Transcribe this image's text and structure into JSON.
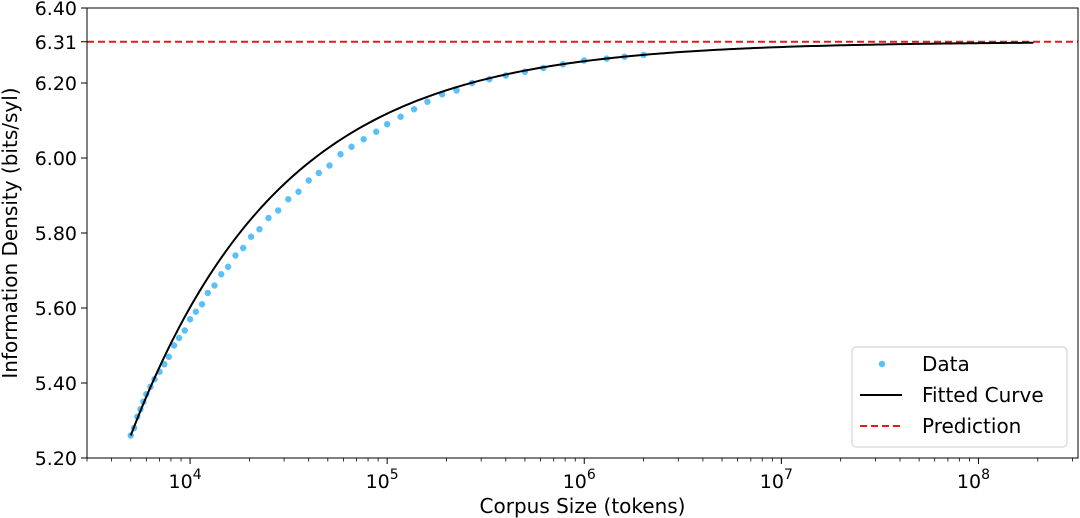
{
  "chart_data": {
    "type": "scatter",
    "title": "",
    "xlabel": "Corpus Size (tokens)",
    "ylabel": "Information Density (bits/syl)",
    "xscale": "log",
    "xlim": [
      3000,
      320000000
    ],
    "ylim": [
      5.2,
      6.4
    ],
    "yticks": [
      5.2,
      5.4,
      5.6,
      5.8,
      6.0,
      6.2,
      6.31,
      6.4
    ],
    "ytick_labels": [
      "5.20",
      "5.40",
      "5.60",
      "5.80",
      "6.00",
      "6.20",
      "6.31",
      "6.40"
    ],
    "xticks": [
      10000,
      100000,
      1000000,
      10000000,
      100000000
    ],
    "xtick_labels": [
      {
        "base": "10",
        "exp": "4"
      },
      {
        "base": "10",
        "exp": "5"
      },
      {
        "base": "10",
        "exp": "6"
      },
      {
        "base": "10",
        "exp": "7"
      },
      {
        "base": "10",
        "exp": "8"
      }
    ],
    "grid": false,
    "legend_position": "lower-right",
    "series": [
      {
        "name": "Data",
        "kind": "scatter",
        "color": "#5bc0f8",
        "points": [
          [
            5000,
            5.26
          ],
          [
            5200,
            5.28
          ],
          [
            5400,
            5.31
          ],
          [
            5600,
            5.33
          ],
          [
            5800,
            5.35
          ],
          [
            6000,
            5.37
          ],
          [
            6300,
            5.39
          ],
          [
            6600,
            5.41
          ],
          [
            7000,
            5.43
          ],
          [
            7400,
            5.45
          ],
          [
            7800,
            5.47
          ],
          [
            8300,
            5.5
          ],
          [
            8800,
            5.52
          ],
          [
            9400,
            5.54
          ],
          [
            10000,
            5.57
          ],
          [
            10700,
            5.59
          ],
          [
            11500,
            5.61
          ],
          [
            12300,
            5.64
          ],
          [
            13300,
            5.66
          ],
          [
            14400,
            5.69
          ],
          [
            15600,
            5.71
          ],
          [
            17000,
            5.74
          ],
          [
            18600,
            5.76
          ],
          [
            20400,
            5.79
          ],
          [
            22500,
            5.81
          ],
          [
            25000,
            5.84
          ],
          [
            28000,
            5.86
          ],
          [
            31500,
            5.89
          ],
          [
            35500,
            5.91
          ],
          [
            40000,
            5.94
          ],
          [
            45000,
            5.96
          ],
          [
            51000,
            5.98
          ],
          [
            58000,
            6.01
          ],
          [
            66000,
            6.03
          ],
          [
            76000,
            6.05
          ],
          [
            88000,
            6.07
          ],
          [
            100000,
            6.09
          ],
          [
            117000,
            6.11
          ],
          [
            137000,
            6.13
          ],
          [
            160000,
            6.15
          ],
          [
            190000,
            6.17
          ],
          [
            225000,
            6.18
          ],
          [
            270000,
            6.2
          ],
          [
            330000,
            6.21
          ],
          [
            400000,
            6.22
          ],
          [
            500000,
            6.23
          ],
          [
            620000,
            6.24
          ],
          [
            780000,
            6.25
          ],
          [
            1000000,
            6.26
          ],
          [
            1300000,
            6.265
          ],
          [
            1600000,
            6.27
          ],
          [
            2000000,
            6.275
          ]
        ]
      },
      {
        "name": "Fitted Curve",
        "kind": "line",
        "color": "#000000",
        "asymptote": 6.31,
        "x_start": 5000,
        "x_end": 190000000
      },
      {
        "name": "Prediction",
        "kind": "hline",
        "color": "#e41a1c",
        "y": 6.31
      }
    ]
  }
}
